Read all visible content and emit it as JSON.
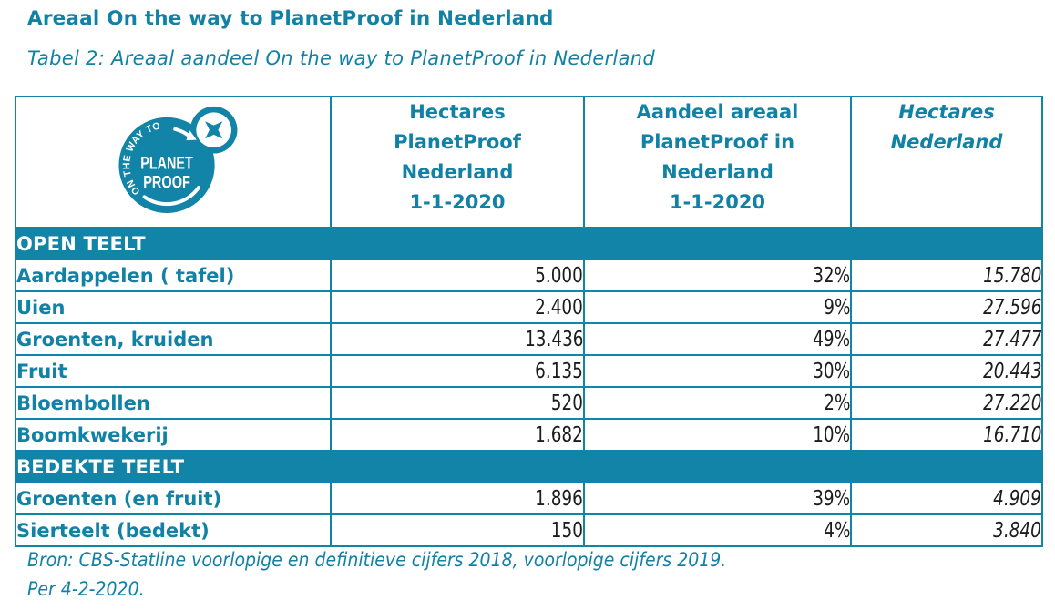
{
  "page": {
    "title": "Areaal On the way to PlanetProof in Nederland",
    "subtitle": "Tabel 2: Areaal aandeel On the way to PlanetProof in Nederland",
    "source_line1": "Bron: CBS-Statline voorlopige en definitieve cijfers 2018, voorlopige cijfers 2019.",
    "source_line2": "Per 4-2-2020."
  },
  "colors": {
    "teal": "#1184a8",
    "text_dark": "#1c1c1c",
    "white": "#ffffff"
  },
  "logo": {
    "name": "On the way to PlanetProof logo",
    "arc_text": "ON THE WAY TO",
    "line1": "PLANET",
    "line2": "PROOF"
  },
  "table": {
    "columns": [
      {
        "label": "",
        "type": "logo"
      },
      {
        "label": "Hectares\nPlanetProof\nNederland\n1-1-2020"
      },
      {
        "label": "Aandeel areaal\nPlanetProof in\nNederland\n1-1-2020"
      },
      {
        "label": "Hectares\nNederland",
        "italic": true
      }
    ],
    "sections": [
      {
        "header": "OPEN TEELT",
        "rows": [
          {
            "label": "Aardappelen ( tafel)",
            "hectares_planetproof": "5.000",
            "aandeel": "32%",
            "hectares_nederland": "15.780"
          },
          {
            "label": "Uien",
            "hectares_planetproof": "2.400",
            "aandeel": "9%",
            "hectares_nederland": "27.596"
          },
          {
            "label": "Groenten, kruiden",
            "hectares_planetproof": "13.436",
            "aandeel": "49%",
            "hectares_nederland": "27.477"
          },
          {
            "label": "Fruit",
            "hectares_planetproof": "6.135",
            "aandeel": "30%",
            "hectares_nederland": "20.443"
          },
          {
            "label": "Bloembollen",
            "hectares_planetproof": "520",
            "aandeel": "2%",
            "hectares_nederland": "27.220"
          },
          {
            "label": "Boomkwekerij",
            "hectares_planetproof": "1.682",
            "aandeel": "10%",
            "hectares_nederland": "16.710"
          }
        ]
      },
      {
        "header": "BEDEKTE TEELT",
        "rows": [
          {
            "label": "Groenten (en fruit)",
            "hectares_planetproof": "1.896",
            "aandeel": "39%",
            "hectares_nederland": "4.909"
          },
          {
            "label": "Sierteelt (bedekt)",
            "hectares_planetproof": "150",
            "aandeel": "4%",
            "hectares_nederland": "3.840"
          }
        ]
      }
    ]
  }
}
